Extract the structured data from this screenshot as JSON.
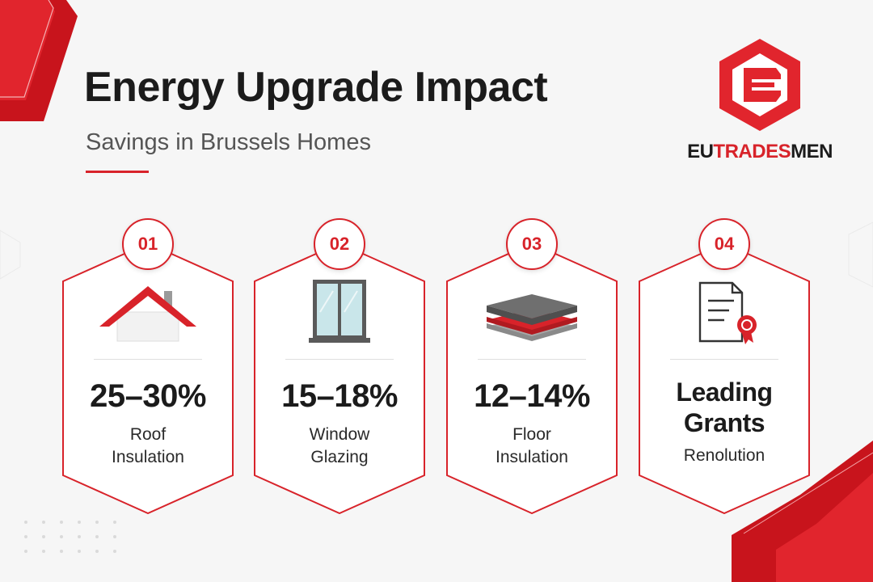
{
  "header": {
    "title": "Energy Upgrade Impact",
    "subtitle": "Savings in Brussels Homes"
  },
  "brand": {
    "name_part1": "EU",
    "name_part2": "TRADES",
    "name_part3": "MEN",
    "logo_icon": "hexagon-e-logo",
    "accent_color": "#d8232a"
  },
  "cards": [
    {
      "number": "01",
      "value": "25–30%",
      "label": "Roof Insulation",
      "icon": "house-roof-icon"
    },
    {
      "number": "02",
      "value": "15–18%",
      "label": "Window Glazing",
      "icon": "window-icon"
    },
    {
      "number": "03",
      "value": "12–14%",
      "label": "Floor Insulation",
      "icon": "floor-layers-icon"
    },
    {
      "number": "04",
      "value": "Leading Grants",
      "label": "Renolution",
      "icon": "certificate-icon"
    }
  ]
}
